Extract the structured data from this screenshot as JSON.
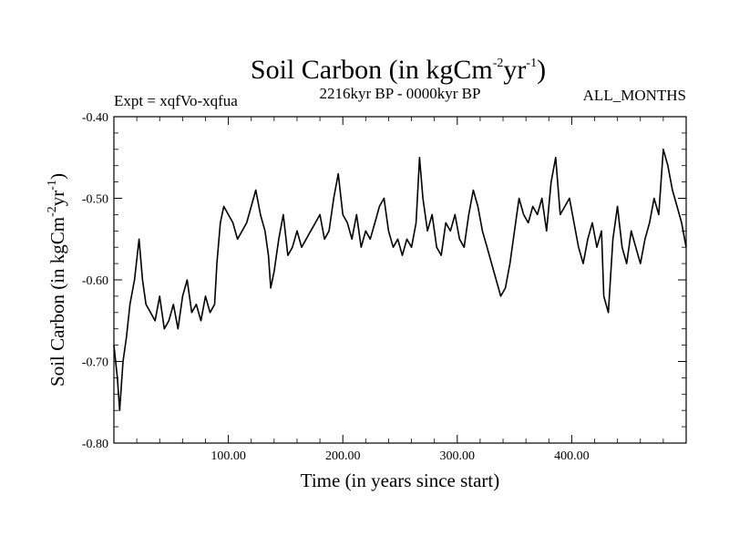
{
  "chart_data": {
    "type": "line",
    "title": {
      "main": "Soil Carbon (in kgCm",
      "exp1": "-2",
      "mid": "yr",
      "exp2": "-1",
      "end": ")"
    },
    "subtitle_left": "Expt = xqfVo-xqfua",
    "subtitle_center": "2216kyr BP - 0000kyr BP",
    "subtitle_right": "ALL_MONTHS",
    "xlabel": "Time (in years since start)",
    "ylabel": {
      "main": "Soil Carbon (in kgCm",
      "exp1": "-2",
      "mid": "yr",
      "exp2": "-1",
      "end": ")"
    },
    "xlim": [
      0,
      500
    ],
    "ylim": [
      -0.8,
      -0.4
    ],
    "xticks": [
      100,
      200,
      300,
      400
    ],
    "xtick_labels": [
      "100.00",
      "200.00",
      "300.00",
      "400.00"
    ],
    "yticks": [
      -0.8,
      -0.7,
      -0.6,
      -0.5,
      -0.4
    ],
    "ytick_labels": [
      "-0.80",
      "-0.70",
      "-0.60",
      "-0.50",
      "-0.40"
    ],
    "series": [
      {
        "name": "Soil Carbon",
        "color": "#000000",
        "x": [
          0,
          3,
          5,
          8,
          11,
          14,
          18,
          22,
          25,
          28,
          32,
          36,
          40,
          44,
          48,
          52,
          56,
          60,
          64,
          68,
          72,
          76,
          80,
          84,
          88,
          90,
          93,
          96,
          100,
          104,
          108,
          112,
          116,
          120,
          124,
          128,
          132,
          135,
          137,
          140,
          144,
          148,
          152,
          156,
          160,
          164,
          168,
          172,
          176,
          180,
          184,
          188,
          192,
          196,
          200,
          204,
          208,
          212,
          216,
          220,
          224,
          228,
          232,
          236,
          240,
          244,
          248,
          252,
          256,
          260,
          264,
          267,
          270,
          274,
          278,
          282,
          286,
          290,
          294,
          298,
          302,
          306,
          310,
          314,
          318,
          322,
          326,
          330,
          334,
          338,
          342,
          346,
          350,
          354,
          358,
          362,
          366,
          370,
          374,
          378,
          382,
          386,
          390,
          394,
          398,
          402,
          406,
          410,
          414,
          418,
          422,
          426,
          428,
          432,
          436,
          440,
          444,
          448,
          452,
          456,
          460,
          464,
          468,
          472,
          476,
          480,
          484,
          488,
          492,
          496,
          500
        ],
        "y": [
          -0.68,
          -0.72,
          -0.76,
          -0.7,
          -0.67,
          -0.63,
          -0.6,
          -0.55,
          -0.6,
          -0.63,
          -0.64,
          -0.65,
          -0.62,
          -0.66,
          -0.65,
          -0.63,
          -0.66,
          -0.62,
          -0.6,
          -0.64,
          -0.63,
          -0.65,
          -0.62,
          -0.64,
          -0.63,
          -0.58,
          -0.53,
          -0.51,
          -0.52,
          -0.53,
          -0.55,
          -0.54,
          -0.53,
          -0.51,
          -0.49,
          -0.52,
          -0.54,
          -0.57,
          -0.61,
          -0.59,
          -0.55,
          -0.52,
          -0.57,
          -0.56,
          -0.54,
          -0.56,
          -0.55,
          -0.54,
          -0.53,
          -0.52,
          -0.55,
          -0.54,
          -0.5,
          -0.47,
          -0.52,
          -0.53,
          -0.55,
          -0.52,
          -0.56,
          -0.54,
          -0.55,
          -0.53,
          -0.51,
          -0.5,
          -0.54,
          -0.56,
          -0.55,
          -0.57,
          -0.55,
          -0.56,
          -0.53,
          -0.45,
          -0.5,
          -0.54,
          -0.52,
          -0.56,
          -0.57,
          -0.53,
          -0.54,
          -0.52,
          -0.55,
          -0.56,
          -0.52,
          -0.49,
          -0.51,
          -0.54,
          -0.56,
          -0.58,
          -0.6,
          -0.62,
          -0.61,
          -0.58,
          -0.54,
          -0.5,
          -0.52,
          -0.53,
          -0.51,
          -0.52,
          -0.5,
          -0.54,
          -0.48,
          -0.45,
          -0.52,
          -0.51,
          -0.5,
          -0.53,
          -0.56,
          -0.58,
          -0.55,
          -0.53,
          -0.56,
          -0.54,
          -0.62,
          -0.64,
          -0.55,
          -0.51,
          -0.56,
          -0.58,
          -0.54,
          -0.56,
          -0.58,
          -0.55,
          -0.53,
          -0.5,
          -0.52,
          -0.44,
          -0.46,
          -0.49,
          -0.51,
          -0.53,
          -0.56
        ]
      }
    ]
  }
}
